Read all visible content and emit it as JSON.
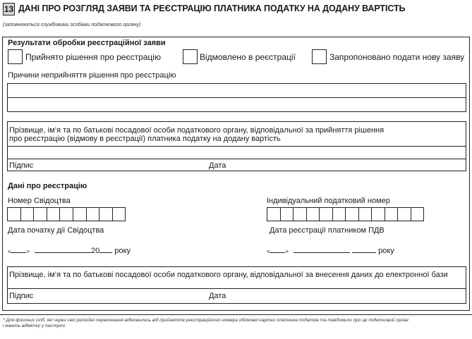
{
  "header": {
    "section_number": "13",
    "title": "ДАНІ ПРО РОЗГЛЯД ЗАЯВИ ТА РЕЄСТРАЦІЮ ПЛАТНИКА ПОДАТКУ НА ДОДАНУ ВАРТІСТЬ",
    "subtitle": "(заповнюються службовими особами податкового органу)"
  },
  "results": {
    "heading": "Результати обробки реєстраційної заяви",
    "options": [
      {
        "label": "Прийнято рішення про реєстрацію",
        "checked": false
      },
      {
        "label": "Відмовлено в реєстрації",
        "checked": false
      },
      {
        "label": "Запропоновано подати нову заяву",
        "checked": false
      }
    ],
    "reasons_label": "Причини неприйняття рішення про реєстрацію",
    "reasons_lines": [
      "",
      ""
    ]
  },
  "official_decision": {
    "label_line1": "Прізвище, ім’я та по батькові посадової особи податкового органу, відповідальної за прийняття рішення",
    "label_line2": "про реєстрацію (відмову в реєстрації) платника податку на додану вартість",
    "name_value": "",
    "signature_label": "Підпис",
    "date_label": "Дата"
  },
  "registration": {
    "heading": "Дані про реєстрацію",
    "certificate_number_label": "Номер Свідоцтва",
    "certificate_number_cells": 9,
    "tax_id_label": "Індивідуальний податковий номер",
    "tax_id_cells": 12,
    "certificate_start_label": "Дата початку дії Свідоцтва",
    "certificate_start_template": {
      "open_quote": "«",
      "close_quote": "»",
      "year_prefix": "20",
      "year_suffix": "року"
    },
    "vat_registration_label": "Дата реєстрації платником ПДВ",
    "vat_registration_template": {
      "open_quote": "«",
      "close_quote": "»",
      "year_suffix": "року"
    }
  },
  "official_database": {
    "label": "Прізвище, ім’я та по батькові посадової особи податкового органу, відповідальної за внесення даних до електронної бази",
    "signature_label": "Підпис",
    "date_label": "Дата"
  },
  "footnote": {
    "line1": "* Для фізичних осіб, які через свої релігійні переконання відмовились від прийняття реєстраційного номера облікової картки платника податків та повідомили про це податковий орган",
    "line2": "і мають відмітку у паспорті."
  }
}
